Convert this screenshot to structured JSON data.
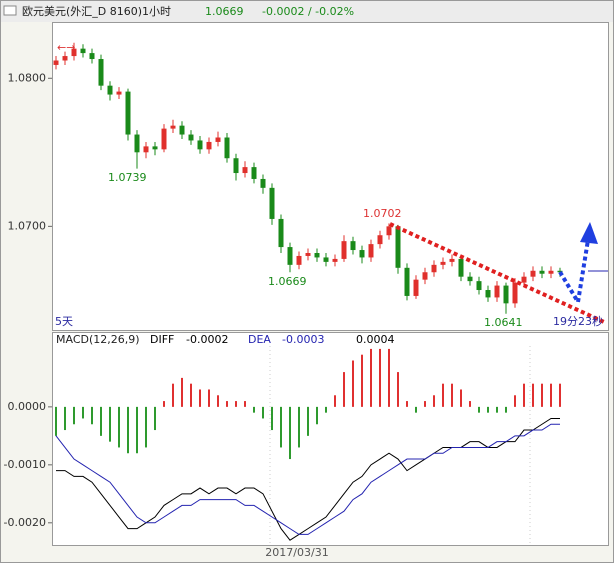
{
  "header": {
    "title": "欧元美元(外汇_D 8160)1小时",
    "price": "1.0669",
    "change": "-0.0002 / -0.02%"
  },
  "period": "5天",
  "countdown": "19分23秒",
  "chart_data": [
    {
      "type": "candlestick",
      "up_color": "#e0302c",
      "down_color": "#1a8a1a",
      "ylim": [
        1.063,
        1.0838
      ],
      "yticks": [
        {
          "value": 1.07,
          "label": "1.0700"
        },
        {
          "value": 1.08,
          "label": "1.0800"
        }
      ],
      "labels": [
        "1.0739",
        "1.0669",
        "1.0702",
        "1.0641"
      ],
      "open": [
        1.0809,
        1.0812,
        1.0815,
        1.082,
        1.0817,
        1.0813,
        1.0795,
        1.0789,
        1.0791,
        1.0762,
        1.075,
        1.0754,
        1.0752,
        1.0766,
        1.0768,
        1.0762,
        1.0758,
        1.0752,
        1.0757,
        1.076,
        1.0746,
        1.0736,
        1.074,
        1.0732,
        1.0726,
        1.0705,
        1.0686,
        1.0674,
        1.068,
        1.0682,
        1.0679,
        1.0676,
        1.0678,
        1.069,
        1.0684,
        1.0679,
        1.0688,
        1.0694,
        1.07,
        1.0672,
        1.0653,
        1.0664,
        1.0669,
        1.0674,
        1.0676,
        1.0678,
        1.0666,
        1.0663,
        1.0657,
        1.0652,
        1.066,
        1.0648,
        1.0662,
        1.0666,
        1.067,
        1.0668,
        1.067
      ],
      "high": [
        1.0815,
        1.0818,
        1.0824,
        1.0823,
        1.082,
        1.0816,
        1.0798,
        1.0794,
        1.0793,
        1.0765,
        1.0757,
        1.0757,
        1.0769,
        1.0772,
        1.0771,
        1.0765,
        1.0761,
        1.076,
        1.0764,
        1.0763,
        1.0749,
        1.0744,
        1.0743,
        1.0735,
        1.0729,
        1.0708,
        1.0689,
        1.0683,
        1.0685,
        1.0685,
        1.0682,
        1.0681,
        1.0694,
        1.0693,
        1.0687,
        1.0691,
        1.0697,
        1.0702,
        1.0701,
        1.0675,
        1.0667,
        1.0672,
        1.0677,
        1.0679,
        1.0681,
        1.068,
        1.0669,
        1.0666,
        1.066,
        1.0663,
        1.0662,
        1.0665,
        1.0669,
        1.0673,
        1.0673,
        1.0673,
        1.0672
      ],
      "low": [
        1.0806,
        1.0809,
        1.0812,
        1.0814,
        1.081,
        1.0792,
        1.0785,
        1.0786,
        1.0758,
        1.0739,
        1.0746,
        1.0748,
        1.075,
        1.0763,
        1.0759,
        1.0755,
        1.0749,
        1.0749,
        1.0754,
        1.0743,
        1.0731,
        1.0733,
        1.0729,
        1.0722,
        1.0701,
        1.0682,
        1.0669,
        1.0671,
        1.0677,
        1.0676,
        1.0673,
        1.0673,
        1.0676,
        1.0681,
        1.0675,
        1.0676,
        1.0685,
        1.0691,
        1.0668,
        1.065,
        1.0651,
        1.0661,
        1.0666,
        1.0671,
        1.0673,
        1.0663,
        1.066,
        1.0654,
        1.0649,
        1.0649,
        1.0641,
        1.0645,
        1.0659,
        1.0663,
        1.0665,
        1.0665,
        1.0666
      ],
      "close": [
        1.0812,
        1.0815,
        1.082,
        1.0817,
        1.0813,
        1.0795,
        1.0789,
        1.0791,
        1.0762,
        1.075,
        1.0754,
        1.0752,
        1.0766,
        1.0768,
        1.0762,
        1.0758,
        1.0752,
        1.0757,
        1.076,
        1.0746,
        1.0736,
        1.074,
        1.0732,
        1.0726,
        1.0705,
        1.0686,
        1.0674,
        1.068,
        1.0682,
        1.0679,
        1.0676,
        1.0678,
        1.069,
        1.0684,
        1.0679,
        1.0688,
        1.0694,
        1.07,
        1.0672,
        1.0653,
        1.0664,
        1.0669,
        1.0674,
        1.0676,
        1.0678,
        1.0666,
        1.0663,
        1.0657,
        1.0652,
        1.066,
        1.0648,
        1.0662,
        1.0666,
        1.067,
        1.0668,
        1.067,
        1.0669
      ]
    },
    {
      "type": "macd",
      "title": "MACD(12,26,9)",
      "x_label": "2017/03/31",
      "ylim": [
        -0.0024,
        0.00105
      ],
      "yticks": [
        {
          "value": 0,
          "label": "0.0000"
        },
        {
          "value": -0.001,
          "label": "-0.0010"
        },
        {
          "value": -0.002,
          "label": "-0.0020"
        }
      ],
      "pos_color": "#e03030",
      "neg_color": "#2e9a2e",
      "histogram_label": "0.0004",
      "histogram": [
        -0.0005,
        -0.0004,
        -0.0003,
        -0.0002,
        -0.0003,
        -0.0005,
        -0.0006,
        -0.0007,
        -0.0008,
        -0.0008,
        -0.0007,
        -0.0004,
        0.0001,
        0.0004,
        0.0005,
        0.0004,
        0.0003,
        0.0003,
        0.0002,
        0.0001,
        0.0001,
        0.0001,
        -0.0001,
        -0.0002,
        -0.0004,
        -0.0007,
        -0.0009,
        -0.0007,
        -0.0005,
        -0.0003,
        -0.0001,
        0.0002,
        0.0006,
        0.0008,
        0.0009,
        0.001,
        0.001,
        0.001,
        0.0006,
        0.0001,
        -0.0001,
        0.0001,
        0.0002,
        0.0004,
        0.0004,
        0.0003,
        0.0001,
        -0.0001,
        -0.0001,
        -0.0001,
        -0.0001,
        0.0002,
        0.0004,
        0.0004,
        0.0004,
        0.0004,
        0.0004
      ],
      "series": [
        {
          "name": "DIFF",
          "color": "#000000",
          "value_label": "-0.0002",
          "values": [
            -0.0011,
            -0.0011,
            -0.0012,
            -0.0012,
            -0.0013,
            -0.0015,
            -0.0017,
            -0.0019,
            -0.0021,
            -0.0021,
            -0.002,
            -0.0019,
            -0.0017,
            -0.0016,
            -0.0015,
            -0.0015,
            -0.0014,
            -0.0015,
            -0.0014,
            -0.0014,
            -0.0015,
            -0.0014,
            -0.0014,
            -0.0015,
            -0.0018,
            -0.0021,
            -0.0023,
            -0.0022,
            -0.0021,
            -0.002,
            -0.0019,
            -0.0017,
            -0.0015,
            -0.0013,
            -0.0012,
            -0.001,
            -0.0009,
            -0.0008,
            -0.0009,
            -0.0011,
            -0.001,
            -0.0009,
            -0.0008,
            -0.0007,
            -0.0007,
            -0.0007,
            -0.0006,
            -0.0006,
            -0.0007,
            -0.0007,
            -0.0006,
            -0.0006,
            -0.0004,
            -0.0004,
            -0.0003,
            -0.0002,
            -0.0002
          ]
        },
        {
          "name": "DEA",
          "color": "#2424b0",
          "value_label": "-0.0003",
          "values": [
            -0.0005,
            -0.0007,
            -0.0009,
            -0.001,
            -0.0011,
            -0.0012,
            -0.0013,
            -0.0015,
            -0.0017,
            -0.0019,
            -0.002,
            -0.002,
            -0.0019,
            -0.0018,
            -0.0017,
            -0.0017,
            -0.0016,
            -0.0016,
            -0.0016,
            -0.0016,
            -0.0016,
            -0.0017,
            -0.0017,
            -0.0018,
            -0.0019,
            -0.002,
            -0.0021,
            -0.0022,
            -0.0022,
            -0.0021,
            -0.002,
            -0.0019,
            -0.0018,
            -0.0016,
            -0.0015,
            -0.0013,
            -0.0012,
            -0.0011,
            -0.001,
            -0.0009,
            -0.0009,
            -0.0009,
            -0.0008,
            -0.0008,
            -0.0007,
            -0.0007,
            -0.0007,
            -0.0007,
            -0.0007,
            -0.0006,
            -0.0006,
            -0.0005,
            -0.0005,
            -0.0004,
            -0.0004,
            -0.0003,
            -0.0003
          ]
        }
      ]
    }
  ]
}
